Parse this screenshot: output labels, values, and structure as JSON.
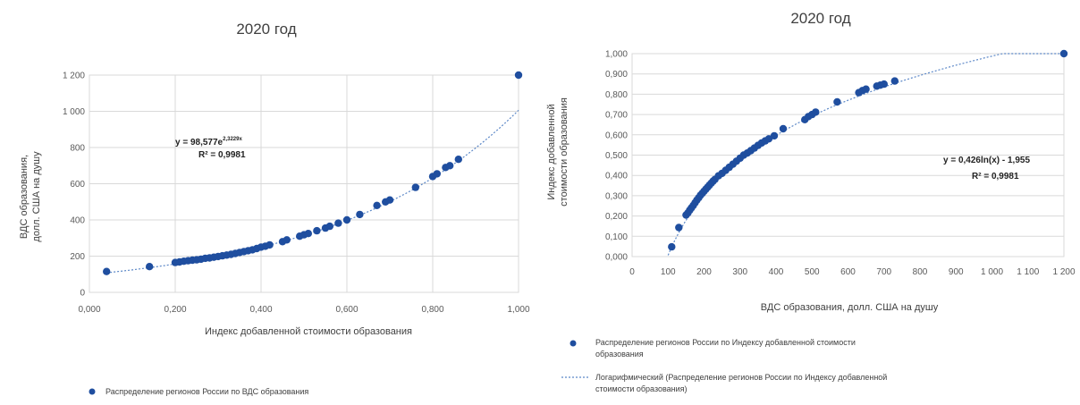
{
  "chart_data": [
    {
      "type": "scatter",
      "title": "2020 год",
      "xlabel": "Индекс добавленной стоимости образования",
      "ylabel": "ВДС образования, долл. США на душу",
      "xlim": [
        0,
        1
      ],
      "ylim": [
        0,
        1200
      ],
      "x_ticks": [
        "0,000",
        "0,200",
        "0,400",
        "0,600",
        "0,800",
        "1,000"
      ],
      "y_ticks": [
        "0",
        "200",
        "400",
        "600",
        "800",
        "1 000",
        "1 200"
      ],
      "grid": true,
      "legend_position": "bottom",
      "marker_color": "#1f4e9f",
      "trend_color": "#5b87c7",
      "annotation_line1": "y = 98,577e",
      "annotation_exp": "2,3229x",
      "annotation_line2": "R² = 0,9981",
      "trendline": {
        "kind": "exponential",
        "a": 98.577,
        "b": 2.3229
      },
      "series": [
        {
          "name": "Распределение регионов России по ВДС образования",
          "points": [
            [
              0.04,
              115
            ],
            [
              0.14,
              142
            ],
            [
              0.2,
              165
            ],
            [
              0.21,
              168
            ],
            [
              0.22,
              172
            ],
            [
              0.23,
              175
            ],
            [
              0.24,
              178
            ],
            [
              0.25,
              180
            ],
            [
              0.26,
              183
            ],
            [
              0.27,
              188
            ],
            [
              0.28,
              190
            ],
            [
              0.29,
              194
            ],
            [
              0.3,
              198
            ],
            [
              0.31,
              202
            ],
            [
              0.32,
              206
            ],
            [
              0.33,
              210
            ],
            [
              0.34,
              215
            ],
            [
              0.35,
              220
            ],
            [
              0.36,
              225
            ],
            [
              0.37,
              230
            ],
            [
              0.38,
              235
            ],
            [
              0.39,
              242
            ],
            [
              0.4,
              250
            ],
            [
              0.41,
              255
            ],
            [
              0.42,
              262
            ],
            [
              0.45,
              280
            ],
            [
              0.46,
              290
            ],
            [
              0.49,
              310
            ],
            [
              0.5,
              318
            ],
            [
              0.51,
              325
            ],
            [
              0.53,
              340
            ],
            [
              0.55,
              355
            ],
            [
              0.56,
              365
            ],
            [
              0.58,
              382
            ],
            [
              0.6,
              400
            ],
            [
              0.63,
              430
            ],
            [
              0.67,
              480
            ],
            [
              0.69,
              500
            ],
            [
              0.7,
              510
            ],
            [
              0.76,
              580
            ],
            [
              0.8,
              640
            ],
            [
              0.81,
              655
            ],
            [
              0.83,
              690
            ],
            [
              0.84,
              700
            ],
            [
              0.86,
              735
            ],
            [
              1.0,
              1200
            ]
          ]
        }
      ]
    },
    {
      "type": "scatter",
      "title": "2020 год",
      "xlabel": "ВДС образования, долл. США на душу",
      "ylabel": "Индекс добавленной стоимости образования",
      "xlim": [
        0,
        1200
      ],
      "ylim": [
        0,
        1
      ],
      "x_ticks": [
        "0",
        "100",
        "200",
        "300",
        "400",
        "500",
        "600",
        "700",
        "800",
        "900",
        "1 000",
        "1 100",
        "1 200"
      ],
      "y_ticks": [
        "0,000",
        "0,100",
        "0,200",
        "0,300",
        "0,400",
        "0,500",
        "0,600",
        "0,700",
        "0,800",
        "0,900",
        "1,000"
      ],
      "grid": true,
      "legend_position": "bottom",
      "marker_color": "#1f4e9f",
      "trend_color": "#5b87c7",
      "annotation_line1": "y = 0,426ln(x) - 1,955",
      "annotation_line2": "R² = 0,9981",
      "trendline": {
        "kind": "logarithmic",
        "a": 0.426,
        "b": -1.955
      },
      "series": [
        {
          "name": "Распределение регионов России по Индексу добавленной стоимости образования",
          "points": [
            [
              110,
              0.048
            ],
            [
              130,
              0.143
            ],
            [
              150,
              0.205
            ],
            [
              155,
              0.215
            ],
            [
              160,
              0.228
            ],
            [
              165,
              0.24
            ],
            [
              170,
              0.252
            ],
            [
              175,
              0.265
            ],
            [
              180,
              0.278
            ],
            [
              185,
              0.29
            ],
            [
              190,
              0.302
            ],
            [
              195,
              0.312
            ],
            [
              200,
              0.322
            ],
            [
              205,
              0.332
            ],
            [
              210,
              0.342
            ],
            [
              215,
              0.352
            ],
            [
              220,
              0.362
            ],
            [
              225,
              0.372
            ],
            [
              230,
              0.38
            ],
            [
              240,
              0.398
            ],
            [
              250,
              0.41
            ],
            [
              260,
              0.425
            ],
            [
              270,
              0.44
            ],
            [
              280,
              0.455
            ],
            [
              290,
              0.47
            ],
            [
              300,
              0.485
            ],
            [
              310,
              0.5
            ],
            [
              320,
              0.51
            ],
            [
              330,
              0.522
            ],
            [
              340,
              0.535
            ],
            [
              350,
              0.548
            ],
            [
              360,
              0.56
            ],
            [
              370,
              0.57
            ],
            [
              380,
              0.58
            ],
            [
              395,
              0.595
            ],
            [
              420,
              0.63
            ],
            [
              480,
              0.675
            ],
            [
              490,
              0.69
            ],
            [
              500,
              0.7
            ],
            [
              510,
              0.712
            ],
            [
              570,
              0.762
            ],
            [
              630,
              0.808
            ],
            [
              640,
              0.818
            ],
            [
              650,
              0.825
            ],
            [
              680,
              0.84
            ],
            [
              690,
              0.845
            ],
            [
              700,
              0.85
            ],
            [
              730,
              0.865
            ],
            [
              1200,
              1.0
            ]
          ]
        },
        {
          "name": "Логарифмический (Распределение регионов России по Индексу добавленной стоимости образования)",
          "is_trendline": true
        }
      ]
    }
  ]
}
